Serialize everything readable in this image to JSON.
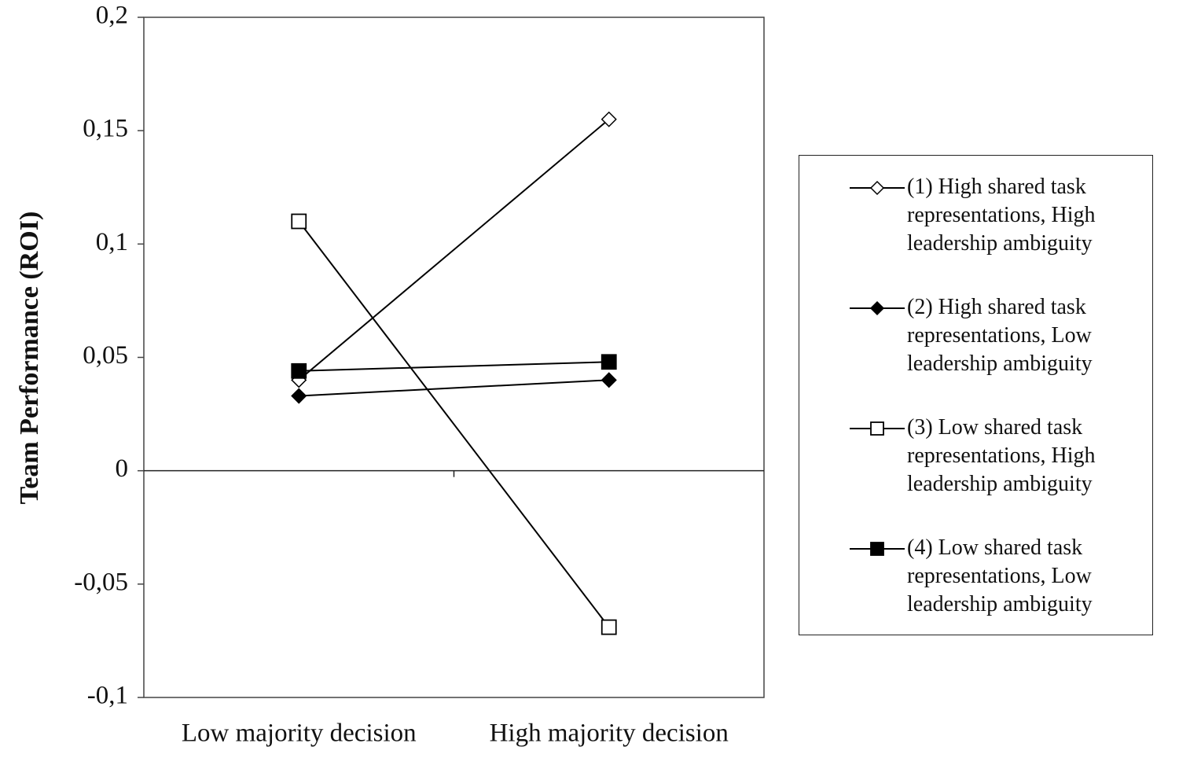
{
  "chart_data": {
    "type": "line",
    "y_label": "Team  Performance (ROI)",
    "categories": [
      "Low majority decision",
      "High majority decision"
    ],
    "ylim": [
      -0.1,
      0.2
    ],
    "yticks": [
      {
        "value": -0.1,
        "label": "-0,1"
      },
      {
        "value": -0.05,
        "label": "-0,05"
      },
      0,
      {
        "value": 0.05,
        "label": "0,05"
      },
      {
        "value": 0.1,
        "label": "0,1"
      },
      {
        "value": 0.15,
        "label": "0,15"
      },
      {
        "value": 0.2,
        "label": "0,2"
      }
    ],
    "series": [
      {
        "name": "(1) High shared task representations, High leadership ambiguity",
        "color": "#000000",
        "marker": "diamond",
        "filled": false,
        "values": [
          0.04,
          0.155
        ]
      },
      {
        "name": "(2) High shared task representations, Low leadership ambiguity",
        "color": "#000000",
        "marker": "diamond",
        "filled": true,
        "values": [
          0.033,
          0.04
        ]
      },
      {
        "name": "(3) Low shared task representations, High leadership ambiguity",
        "color": "#000000",
        "marker": "square",
        "filled": false,
        "values": [
          0.11,
          -0.069
        ]
      },
      {
        "name": "(4) Low shared task representations, Low leadership ambiguity",
        "color": "#000000",
        "marker": "square",
        "filled": true,
        "values": [
          0.044,
          0.048
        ]
      }
    ]
  }
}
